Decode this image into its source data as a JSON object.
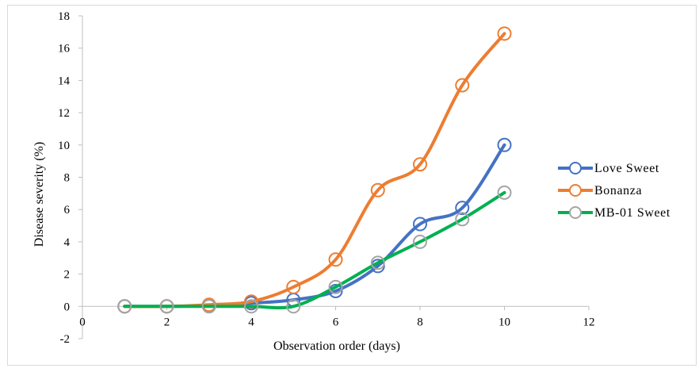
{
  "chart_data": {
    "type": "line",
    "xlabel": "Observation order (days)",
    "ylabel": "Disease severity (%)",
    "xlim": [
      0,
      12
    ],
    "ylim": [
      -2,
      18
    ],
    "x_ticks": [
      0,
      2,
      4,
      6,
      8,
      10,
      12
    ],
    "y_ticks": [
      -2,
      0,
      2,
      4,
      6,
      8,
      10,
      12,
      14,
      16,
      18
    ],
    "grid": false,
    "legend_position": "right",
    "x": [
      1,
      2,
      3,
      4,
      5,
      6,
      7,
      8,
      9,
      10
    ],
    "series": [
      {
        "name": "Love Sweet",
        "color": "#4472c4",
        "values": [
          0,
          0,
          0.05,
          0.2,
          0.4,
          0.95,
          2.5,
          5.1,
          6.1,
          10.0
        ]
      },
      {
        "name": "Bonanza",
        "color": "#ed7d31",
        "values": [
          0,
          0,
          0.1,
          0.3,
          1.2,
          2.9,
          7.2,
          8.8,
          13.7,
          16.9
        ]
      },
      {
        "name": "MB-01 Sweet",
        "color": "#00b050",
        "marker_color": "#a5a5a5",
        "values": [
          0,
          0,
          0,
          0,
          0,
          1.2,
          2.7,
          4.0,
          5.4,
          7.05
        ]
      }
    ]
  }
}
